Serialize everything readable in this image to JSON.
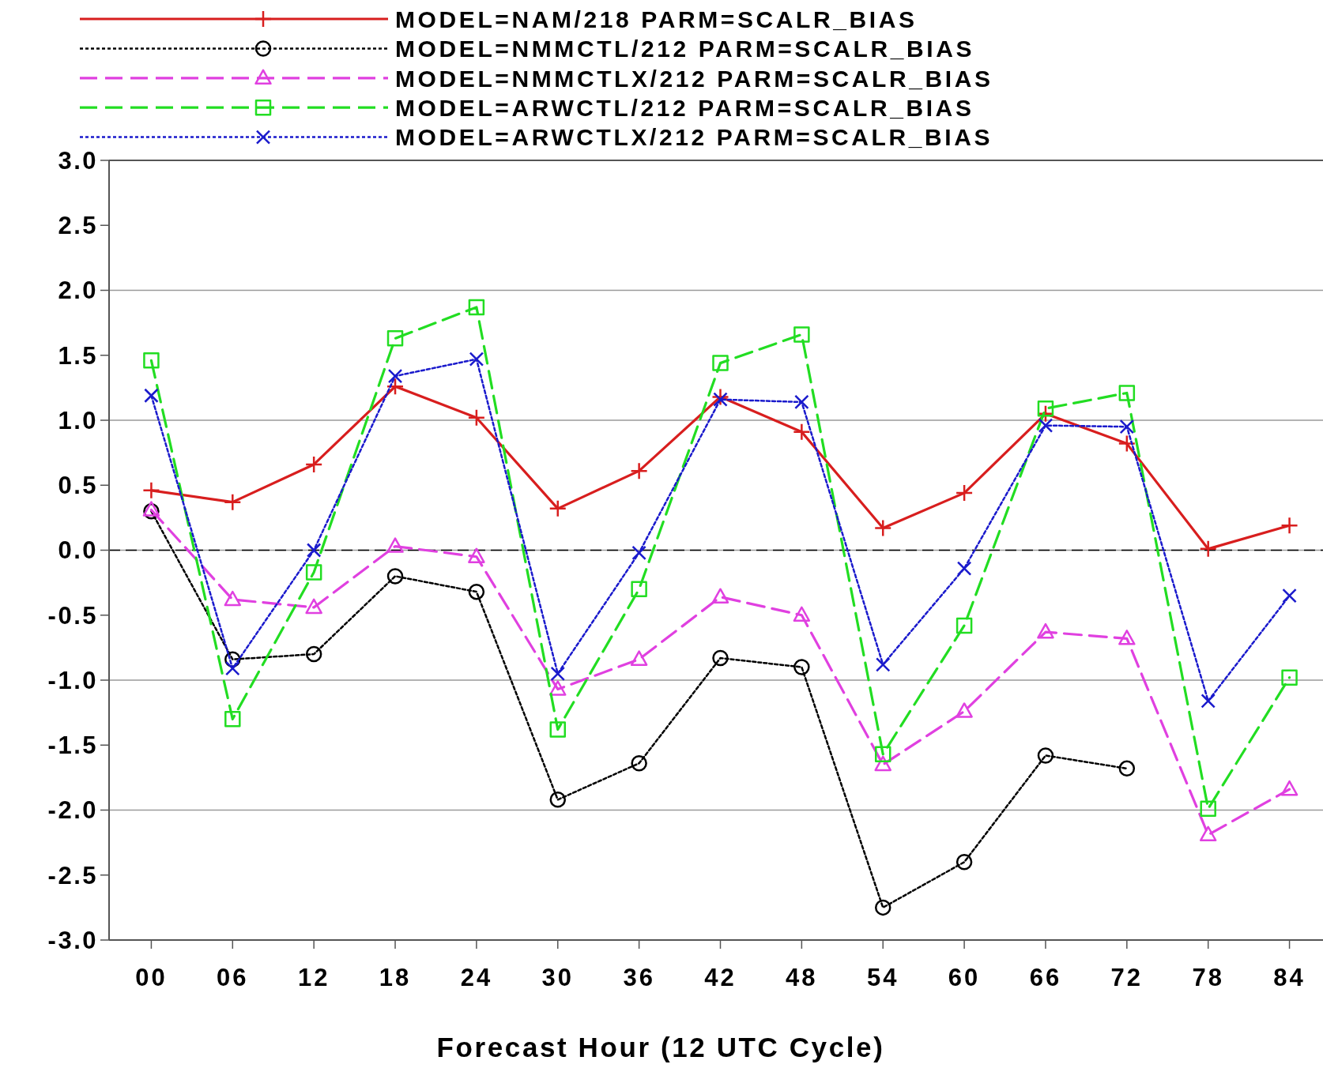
{
  "chart_data": {
    "type": "line",
    "xlabel": "Forecast Hour (12 UTC Cycle)",
    "categories": [
      "00",
      "06",
      "12",
      "18",
      "24",
      "30",
      "36",
      "42",
      "48",
      "54",
      "60",
      "66",
      "72",
      "78",
      "84"
    ],
    "series": [
      {
        "name": "MODEL=NAM/218 PARM=SCALR_BIAS",
        "color": "#d81e1e",
        "marker": "plus",
        "line_style": "solid",
        "values": [
          0.46,
          0.37,
          0.66,
          1.26,
          1.02,
          0.32,
          0.61,
          1.18,
          0.91,
          0.17,
          0.44,
          1.05,
          0.82,
          0.01,
          0.19
        ]
      },
      {
        "name": "MODEL=NMMCTL/212 PARM=SCALR_BIAS",
        "color": "#000000",
        "marker": "circle",
        "line_style": "dotted",
        "values": [
          0.3,
          -0.84,
          -0.8,
          -0.2,
          -0.32,
          -1.92,
          -1.64,
          -0.83,
          -0.9,
          -2.75,
          -2.4,
          -1.58,
          -1.68,
          null,
          null
        ]
      },
      {
        "name": "MODEL=NMMCTLX/212 PARM=SCALR_BIAS",
        "color": "#e040e0",
        "marker": "triangle",
        "line_style": "dashed",
        "values": [
          0.31,
          -0.38,
          -0.44,
          0.03,
          -0.05,
          -1.07,
          -0.84,
          -0.36,
          -0.5,
          -1.65,
          -1.24,
          -0.63,
          -0.68,
          -2.19,
          -1.84
        ]
      },
      {
        "name": "MODEL=ARWCTL/212 PARM=SCALR_BIAS",
        "color": "#22dd22",
        "marker": "square",
        "line_style": "dashed",
        "values": [
          1.46,
          -1.3,
          -0.17,
          1.63,
          1.87,
          -1.38,
          -0.3,
          1.44,
          1.66,
          -1.57,
          -0.58,
          1.09,
          1.21,
          -1.99,
          -0.98
        ]
      },
      {
        "name": "MODEL=ARWCTLX/212 PARM=SCALR_BIAS",
        "color": "#1a1acc",
        "marker": "cross",
        "line_style": "dotted",
        "values": [
          1.19,
          -0.91,
          0.0,
          1.34,
          1.47,
          -0.95,
          -0.02,
          1.16,
          1.14,
          -0.88,
          -0.14,
          0.96,
          0.95,
          -1.16,
          -0.35
        ]
      }
    ],
    "ylim": [
      -3,
      3
    ],
    "yticks": [
      {
        "value": 3,
        "label": "3.0"
      },
      {
        "value": 2.5,
        "label": "2.5"
      },
      {
        "value": 2,
        "label": "2.0"
      },
      {
        "value": 1.5,
        "label": "1.5"
      },
      {
        "value": 1,
        "label": "1.0"
      },
      {
        "value": 0.5,
        "label": "0.5"
      },
      {
        "value": 0,
        "label": "0.0"
      },
      {
        "value": -0.5,
        "label": "-0.5"
      },
      {
        "value": -1,
        "label": "-1.0"
      },
      {
        "value": -1.5,
        "label": "-1.5"
      },
      {
        "value": -2,
        "label": "-2.0"
      },
      {
        "value": -2.5,
        "label": "-2.5"
      },
      {
        "value": -3,
        "label": "-3.0"
      }
    ],
    "ref_lines": [
      {
        "axis": "y",
        "value": 0,
        "color": "#000000",
        "line_style": "dashed"
      }
    ],
    "grid": "y",
    "legend": "top"
  }
}
